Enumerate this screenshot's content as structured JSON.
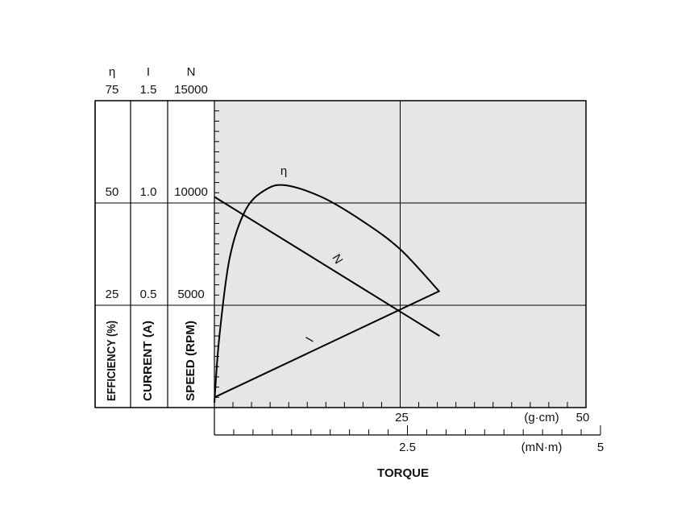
{
  "chart_data": {
    "type": "line",
    "x_label": "TORQUE",
    "x_unit": "(g·cm)",
    "xlim": [
      0,
      50
    ],
    "xticks": [
      25,
      50
    ],
    "x_minor_step": 2.5,
    "x2_unit": "(mN·m)",
    "x2lim": [
      0,
      5
    ],
    "x2ticks": [
      2.5,
      5
    ],
    "x2_minor_step": 0.25,
    "y_minor_step": 500,
    "grid": true,
    "plot_color": "#e6e6e6",
    "line_color": "#000000",
    "y_axes": [
      {
        "symbol": "η",
        "label": "EFFICIENCY (%)",
        "ylim": [
          0,
          75
        ],
        "yticks": [
          25,
          50,
          75
        ],
        "series": {
          "name": "η",
          "x": [
            0,
            0.65,
            2.06,
            4.23,
            6.94,
            9.65,
            14.5,
            20,
            25.05,
            30.3
          ],
          "values": [
            1.2,
            17,
            36.6,
            48.4,
            53.3,
            54.3,
            51.4,
            45.5,
            38.6,
            28.3
          ]
        }
      },
      {
        "symbol": "I",
        "label": "CURRENT (A)",
        "ylim": [
          0,
          1.5
        ],
        "yticks": [
          0.5,
          {
            "value": 1,
            "label": "1.0"
          },
          1.5
        ],
        "series": {
          "name": "I",
          "x": [
            0,
            30.3
          ],
          "values": [
            0.05,
            0.57
          ]
        }
      },
      {
        "symbol": "N",
        "label": "SPEED (RPM)",
        "ylim": [
          0,
          15000
        ],
        "yticks": [
          5000,
          10000,
          15000
        ],
        "series": {
          "name": "N",
          "x": [
            0,
            30.3
          ],
          "values": [
            10300,
            3500
          ]
        }
      }
    ]
  }
}
